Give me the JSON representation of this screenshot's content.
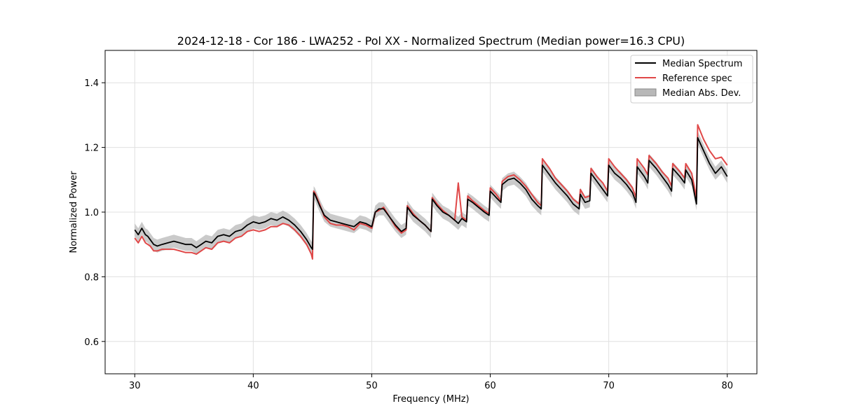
{
  "chart_data": {
    "type": "line",
    "title": "2024-12-18 - Cor 186 - LWA252 - Pol XX - Normalized Spectrum (Median power=16.3 CPU)",
    "xlabel": "Frequency (MHz)",
    "ylabel": "Normalized Power",
    "xlim": [
      27.5,
      82.5
    ],
    "ylim": [
      0.5,
      1.5
    ],
    "x_ticks": [
      30,
      40,
      50,
      60,
      70,
      80
    ],
    "y_ticks": [
      0.6,
      0.8,
      1.0,
      1.2,
      1.4
    ],
    "x_tick_labels": [
      "30",
      "40",
      "50",
      "60",
      "70",
      "80"
    ],
    "y_tick_labels": [
      "0.6",
      "0.8",
      "1.0",
      "1.2",
      "1.4"
    ],
    "grid": true,
    "legend_position": "top-right",
    "colors": {
      "median": "#000000",
      "reference": "#e04848",
      "band": "#b8b8b8",
      "grid": "#e0e0e0"
    },
    "series": [
      {
        "name": "Median Spectrum",
        "x": [
          30.0,
          30.3,
          30.6,
          30.9,
          31.1,
          31.3,
          31.6,
          31.9,
          32.3,
          32.8,
          33.3,
          33.8,
          34.3,
          34.8,
          35.2,
          35.6,
          36.0,
          36.5,
          37.0,
          37.5,
          38.0,
          38.5,
          39.0,
          39.5,
          40.0,
          40.5,
          41.0,
          41.5,
          42.0,
          42.5,
          43.0,
          43.5,
          44.0,
          44.5,
          44.9,
          45.0,
          45.1,
          45.2,
          45.6,
          46.0,
          46.5,
          47.0,
          47.5,
          48.0,
          48.5,
          49.0,
          49.5,
          50.0,
          50.3,
          50.6,
          51.0,
          51.5,
          52.0,
          52.5,
          52.9,
          53.0,
          53.5,
          54.0,
          54.5,
          55.0,
          55.1,
          55.5,
          56.0,
          56.5,
          57.0,
          57.3,
          57.6,
          58.0,
          58.1,
          58.5,
          59.0,
          59.5,
          59.9,
          60.0,
          60.5,
          60.9,
          61.0,
          61.5,
          62.0,
          62.5,
          63.0,
          63.5,
          64.0,
          64.3,
          64.4,
          65.0,
          65.5,
          66.0,
          66.5,
          67.0,
          67.5,
          67.6,
          68.0,
          68.4,
          68.5,
          69.0,
          69.5,
          69.9,
          70.0,
          70.5,
          71.0,
          71.5,
          72.0,
          72.3,
          72.4,
          73.0,
          73.3,
          73.4,
          74.0,
          74.5,
          75.0,
          75.3,
          75.4,
          76.0,
          76.4,
          76.5,
          77.0,
          77.4,
          77.5,
          78.0,
          78.5,
          79.0,
          79.5,
          80.0
        ],
        "values": [
          0.945,
          0.93,
          0.95,
          0.93,
          0.925,
          0.915,
          0.9,
          0.895,
          0.9,
          0.905,
          0.91,
          0.905,
          0.9,
          0.9,
          0.89,
          0.9,
          0.91,
          0.905,
          0.925,
          0.93,
          0.925,
          0.94,
          0.945,
          0.96,
          0.97,
          0.965,
          0.97,
          0.98,
          0.975,
          0.985,
          0.975,
          0.96,
          0.94,
          0.915,
          0.89,
          0.885,
          1.06,
          1.055,
          1.02,
          0.99,
          0.975,
          0.97,
          0.965,
          0.96,
          0.955,
          0.97,
          0.965,
          0.955,
          1.0,
          1.01,
          1.01,
          0.985,
          0.96,
          0.94,
          0.95,
          1.015,
          0.99,
          0.975,
          0.96,
          0.94,
          1.04,
          1.02,
          1.0,
          0.99,
          0.975,
          0.965,
          0.98,
          0.97,
          1.04,
          1.03,
          1.015,
          1.0,
          0.99,
          1.065,
          1.045,
          1.03,
          1.085,
          1.1,
          1.105,
          1.09,
          1.07,
          1.04,
          1.02,
          1.01,
          1.145,
          1.115,
          1.09,
          1.07,
          1.05,
          1.025,
          1.01,
          1.055,
          1.03,
          1.035,
          1.12,
          1.095,
          1.07,
          1.05,
          1.145,
          1.12,
          1.105,
          1.085,
          1.06,
          1.03,
          1.14,
          1.11,
          1.09,
          1.16,
          1.135,
          1.11,
          1.085,
          1.065,
          1.135,
          1.11,
          1.09,
          1.13,
          1.1,
          1.025,
          1.23,
          1.19,
          1.15,
          1.12,
          1.14,
          1.11
        ]
      },
      {
        "name": "Reference spec",
        "x": [
          30.0,
          30.3,
          30.6,
          30.9,
          31.1,
          31.3,
          31.6,
          31.9,
          32.3,
          32.8,
          33.3,
          33.8,
          34.3,
          34.8,
          35.2,
          35.6,
          36.0,
          36.5,
          37.0,
          37.5,
          38.0,
          38.5,
          39.0,
          39.5,
          40.0,
          40.5,
          41.0,
          41.5,
          42.0,
          42.5,
          43.0,
          43.5,
          44.0,
          44.5,
          44.9,
          45.0,
          45.1,
          45.2,
          45.6,
          46.0,
          46.5,
          47.0,
          47.5,
          48.0,
          48.5,
          49.0,
          49.5,
          50.0,
          50.3,
          50.6,
          51.0,
          51.5,
          52.0,
          52.5,
          52.9,
          53.0,
          53.5,
          54.0,
          54.5,
          55.0,
          55.1,
          55.5,
          56.0,
          56.5,
          57.0,
          57.3,
          57.6,
          58.0,
          58.1,
          58.5,
          59.0,
          59.5,
          59.9,
          60.0,
          60.5,
          60.9,
          61.0,
          61.5,
          62.0,
          62.5,
          63.0,
          63.5,
          64.0,
          64.3,
          64.4,
          65.0,
          65.5,
          66.0,
          66.5,
          67.0,
          67.5,
          67.6,
          68.0,
          68.4,
          68.5,
          69.0,
          69.5,
          69.9,
          70.0,
          70.5,
          71.0,
          71.5,
          72.0,
          72.3,
          72.4,
          73.0,
          73.3,
          73.4,
          74.0,
          74.5,
          75.0,
          75.3,
          75.4,
          76.0,
          76.4,
          76.5,
          77.0,
          77.4,
          77.5,
          78.0,
          78.5,
          79.0,
          79.5,
          80.0
        ],
        "values": [
          0.92,
          0.905,
          0.925,
          0.905,
          0.9,
          0.895,
          0.88,
          0.88,
          0.885,
          0.885,
          0.885,
          0.88,
          0.875,
          0.875,
          0.87,
          0.88,
          0.89,
          0.885,
          0.905,
          0.91,
          0.905,
          0.92,
          0.925,
          0.94,
          0.945,
          0.94,
          0.945,
          0.955,
          0.955,
          0.965,
          0.96,
          0.945,
          0.925,
          0.9,
          0.87,
          0.855,
          1.065,
          1.06,
          1.025,
          0.985,
          0.965,
          0.96,
          0.96,
          0.955,
          0.945,
          0.965,
          0.96,
          0.95,
          1.0,
          1.005,
          1.015,
          0.985,
          0.955,
          0.935,
          0.945,
          1.02,
          0.995,
          0.975,
          0.96,
          0.94,
          1.045,
          1.025,
          1.005,
          0.99,
          0.975,
          1.09,
          0.985,
          0.975,
          1.05,
          1.035,
          1.02,
          1.005,
          0.995,
          1.075,
          1.055,
          1.035,
          1.095,
          1.11,
          1.115,
          1.1,
          1.08,
          1.055,
          1.03,
          1.02,
          1.165,
          1.135,
          1.105,
          1.085,
          1.065,
          1.04,
          1.025,
          1.07,
          1.045,
          1.05,
          1.135,
          1.11,
          1.09,
          1.065,
          1.165,
          1.14,
          1.12,
          1.1,
          1.075,
          1.045,
          1.165,
          1.135,
          1.115,
          1.175,
          1.15,
          1.125,
          1.105,
          1.08,
          1.15,
          1.125,
          1.105,
          1.15,
          1.12,
          1.045,
          1.27,
          1.225,
          1.19,
          1.165,
          1.17,
          1.145
        ]
      },
      {
        "name": "Median Abs. Dev.",
        "type": "band",
        "half_width": 0.02,
        "applies_to": "Median Spectrum"
      }
    ]
  }
}
